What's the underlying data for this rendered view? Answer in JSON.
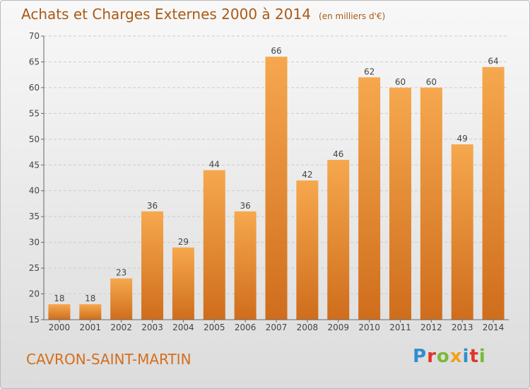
{
  "chart_data": {
    "type": "bar",
    "title": "Achats et Charges Externes 2000 à 2014",
    "subtitle": "(en milliers d'€)",
    "xlabel": "",
    "ylabel": "",
    "categories": [
      "2000",
      "2001",
      "2002",
      "2003",
      "2004",
      "2005",
      "2006",
      "2007",
      "2008",
      "2009",
      "2010",
      "2011",
      "2012",
      "2013",
      "2014"
    ],
    "values": [
      18,
      18,
      23,
      36,
      29,
      44,
      36,
      66,
      42,
      46,
      62,
      60,
      60,
      49,
      64
    ],
    "ylim": [
      15,
      70
    ],
    "yticks": [
      15,
      20,
      25,
      30,
      35,
      40,
      45,
      50,
      55,
      60,
      65,
      70
    ],
    "grid": true,
    "bar_color": "#f29a3f",
    "bar_color_dark": "#d0701e"
  },
  "footer": {
    "commune": "CAVRON-SAINT-MARTIN",
    "logo_text": "Proxiti"
  }
}
